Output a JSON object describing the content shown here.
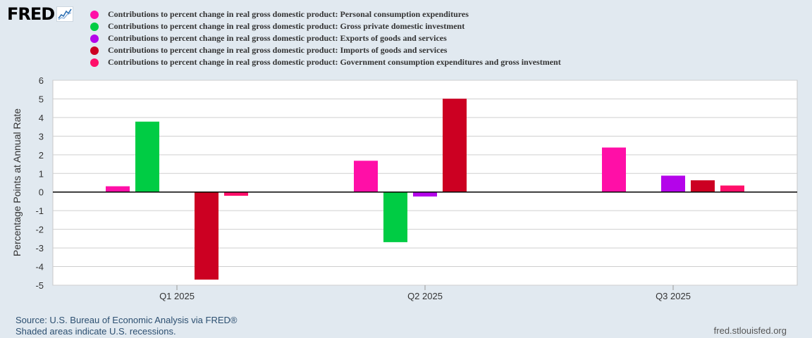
{
  "brand": {
    "logo_text": "FRED",
    "logo_icon": "chart-line-icon"
  },
  "chart_data": {
    "type": "bar",
    "title": "",
    "categories": [
      "Q1 2025",
      "Q2 2025",
      "Q3 2025"
    ],
    "ylabel": "Percentage Points at Annual Rate",
    "xlabel": "",
    "ylim": [
      -5,
      6
    ],
    "yticks": [
      6,
      5,
      4,
      3,
      2,
      1,
      0,
      -1,
      -2,
      -3,
      -4,
      -5
    ],
    "grid": true,
    "legend_position": "top-left",
    "series": [
      {
        "name": "Contributions to percent change in real gross domestic product: Personal consumption expenditures",
        "color": "#ff0fa7",
        "values": [
          0.31,
          1.68,
          2.39
        ]
      },
      {
        "name": "Contributions to percent change in real gross domestic product: Gross private domestic investment",
        "color": "#00cc44",
        "values": [
          3.78,
          -2.69,
          null
        ]
      },
      {
        "name": "Contributions to percent change in real gross domestic product: Exports of goods and services",
        "color": "#b404ea",
        "values": [
          null,
          -0.24,
          0.88
        ]
      },
      {
        "name": "Contributions to percent change in real gross domestic product: Imports of goods and services",
        "color": "#cc0022",
        "values": [
          -4.7,
          5.01,
          0.63
        ]
      },
      {
        "name": "Contributions to percent change in real gross domestic product: Government consumption expenditures and gross investment",
        "color": "#ff0f6a",
        "values": [
          -0.2,
          null,
          0.35
        ]
      }
    ]
  },
  "footer": {
    "source": "Source: U.S. Bureau of Economic Analysis via FRED®",
    "note": "Shaded areas indicate U.S. recessions.",
    "url": "fred.stlouisfed.org"
  }
}
